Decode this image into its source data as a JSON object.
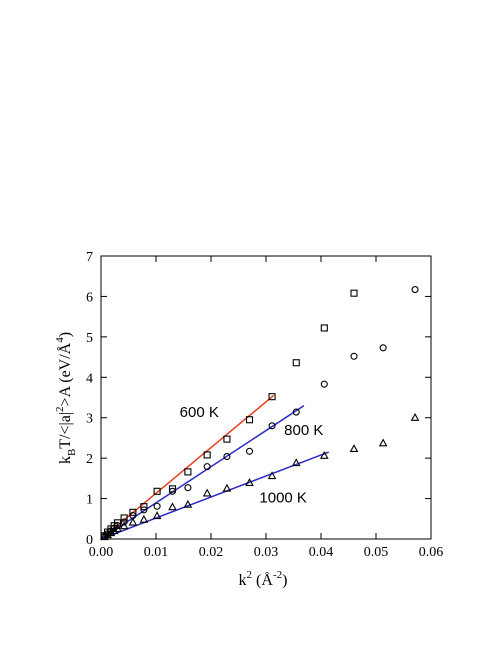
{
  "chart_data": {
    "type": "scatter",
    "title": "",
    "xlabel": {
      "base": "k",
      "sup1": "2",
      "open": " (",
      "angstrom": "Å",
      "sup2": "-2",
      "close": ")"
    },
    "ylabel": {
      "kB": "k",
      "kB_sub": "B",
      "mid": "T/<|a|",
      "a_sup": "2",
      "tail": ">A (eV/",
      "angstrom": "Å",
      "ang_sup": "4",
      "close": ")"
    },
    "xlim": [
      0,
      0.06
    ],
    "ylim": [
      0,
      7
    ],
    "xticks": [
      0,
      0.01,
      0.02,
      0.03,
      0.04,
      0.05,
      0.06
    ],
    "xtick_labels": [
      "0.00",
      "0.01",
      "0.02",
      "0.03",
      "0.04",
      "0.05",
      "0.06"
    ],
    "yticks": [
      0,
      1,
      2,
      3,
      4,
      5,
      6,
      7
    ],
    "ytick_labels": [
      "0",
      "1",
      "2",
      "3",
      "4",
      "5",
      "6",
      "7"
    ],
    "grid": false,
    "legend": "none",
    "series": [
      {
        "name": "600 K",
        "marker": "square",
        "fit_color": "#e8401c",
        "label_pos": [
          0.0143,
          3.02
        ],
        "points": [
          [
            0.0006,
            0.08
          ],
          [
            0.0012,
            0.17
          ],
          [
            0.0018,
            0.25
          ],
          [
            0.0024,
            0.33
          ],
          [
            0.003,
            0.4
          ],
          [
            0.0042,
            0.52
          ],
          [
            0.0058,
            0.66
          ],
          [
            0.0078,
            0.8
          ],
          [
            0.0102,
            1.18
          ],
          [
            0.013,
            1.24
          ],
          [
            0.0158,
            1.66
          ],
          [
            0.0193,
            2.08
          ],
          [
            0.0229,
            2.47
          ],
          [
            0.027,
            2.95
          ],
          [
            0.0311,
            3.52
          ],
          [
            0.0355,
            4.36
          ],
          [
            0.0406,
            5.22
          ],
          [
            0.046,
            6.08
          ]
        ],
        "fit": [
          [
            0.0,
            0.0
          ],
          [
            0.0314,
            3.55
          ]
        ]
      },
      {
        "name": "800 K",
        "marker": "circle",
        "fit_color": "#2a2ac8",
        "label_pos": [
          0.0333,
          2.57
        ],
        "points": [
          [
            0.0006,
            0.06
          ],
          [
            0.0012,
            0.13
          ],
          [
            0.0018,
            0.2
          ],
          [
            0.0024,
            0.27
          ],
          [
            0.003,
            0.33
          ],
          [
            0.0042,
            0.42
          ],
          [
            0.0058,
            0.58
          ],
          [
            0.0078,
            0.72
          ],
          [
            0.0102,
            0.81
          ],
          [
            0.013,
            1.18
          ],
          [
            0.0158,
            1.27
          ],
          [
            0.0193,
            1.79
          ],
          [
            0.0229,
            2.04
          ],
          [
            0.027,
            2.17
          ],
          [
            0.0311,
            2.8
          ],
          [
            0.0355,
            3.14
          ],
          [
            0.0406,
            3.83
          ],
          [
            0.046,
            4.52
          ],
          [
            0.0513,
            4.73
          ],
          [
            0.0571,
            6.17
          ]
        ],
        "fit": [
          [
            0.0,
            0.0
          ],
          [
            0.0369,
            3.3
          ]
        ]
      },
      {
        "name": "1000 K",
        "marker": "triangle",
        "fit_color": "#2a2ac8",
        "label_pos": [
          0.0288,
          0.9
        ],
        "points": [
          [
            0.0006,
            0.05
          ],
          [
            0.0012,
            0.1
          ],
          [
            0.0018,
            0.15
          ],
          [
            0.0024,
            0.2
          ],
          [
            0.003,
            0.25
          ],
          [
            0.0042,
            0.32
          ],
          [
            0.0058,
            0.41
          ],
          [
            0.0078,
            0.48
          ],
          [
            0.0102,
            0.57
          ],
          [
            0.013,
            0.79
          ],
          [
            0.0158,
            0.85
          ],
          [
            0.0193,
            1.13
          ],
          [
            0.0229,
            1.25
          ],
          [
            0.027,
            1.39
          ],
          [
            0.0311,
            1.56
          ],
          [
            0.0355,
            1.88
          ],
          [
            0.0406,
            2.06
          ],
          [
            0.046,
            2.23
          ],
          [
            0.0513,
            2.37
          ],
          [
            0.0571,
            3.0
          ]
        ],
        "fit": [
          [
            0.0,
            0.0
          ],
          [
            0.0414,
            2.15
          ]
        ]
      }
    ]
  }
}
